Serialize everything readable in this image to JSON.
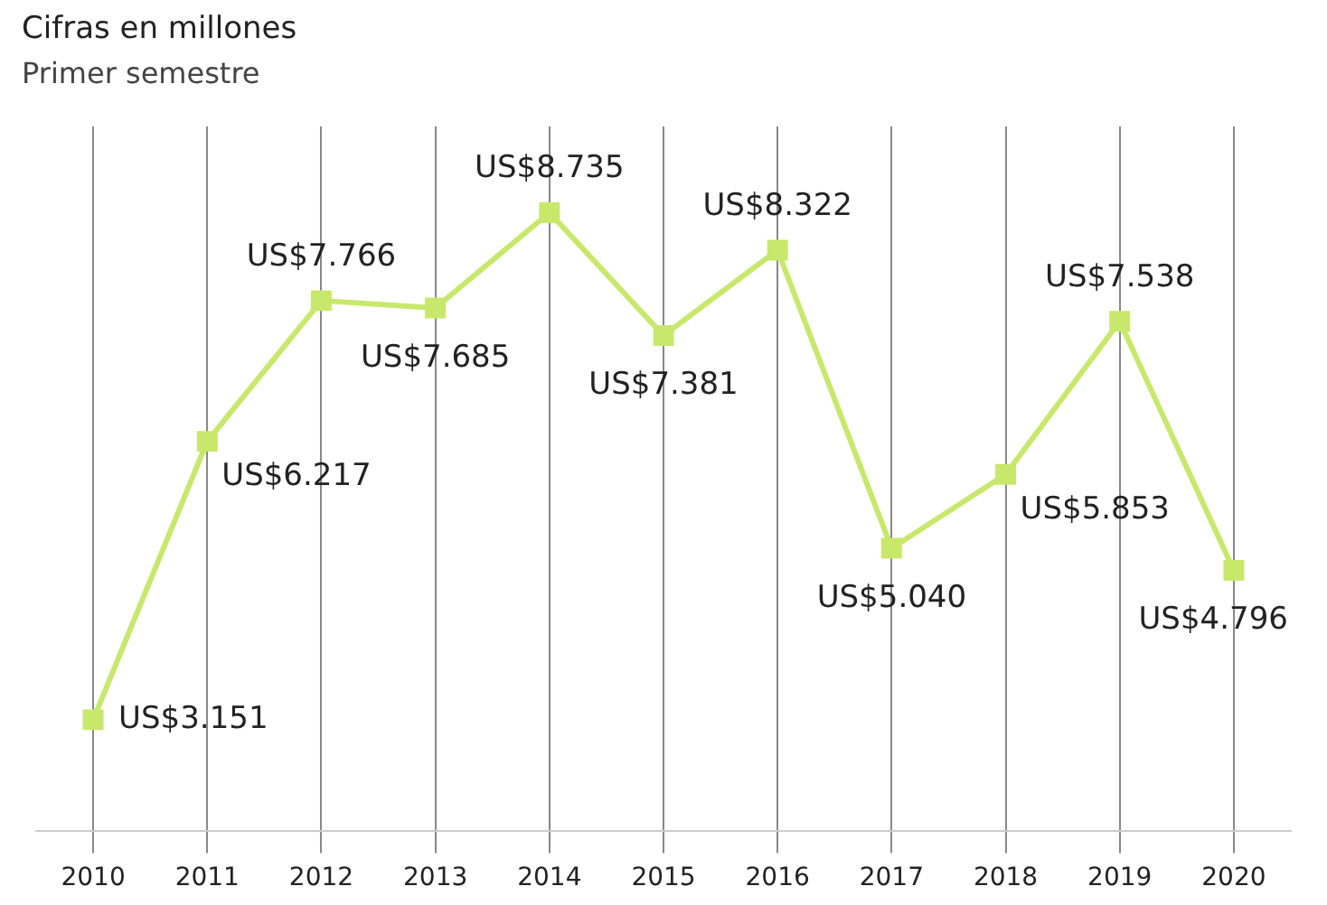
{
  "chart_data": {
    "type": "line",
    "title": "Cifras en millones",
    "subtitle": "Primer semestre",
    "categories": [
      "2010",
      "2011",
      "2012",
      "2013",
      "2014",
      "2015",
      "2016",
      "2017",
      "2018",
      "2019",
      "2020"
    ],
    "series": [
      {
        "color": "#c8e86c",
        "values": [
          3.151,
          6.217,
          7.766,
          7.685,
          8.735,
          7.381,
          8.322,
          5.04,
          5.853,
          7.538,
          4.796
        ],
        "value_labels": [
          "US$3.151",
          "US$6.217",
          "US$7.766",
          "US$7.685",
          "US$8.735",
          "US$7.381",
          "US$8.322",
          "US$5.040",
          "US$5.853",
          "US$7.538",
          "US$4.796"
        ]
      }
    ],
    "grid": "x",
    "marker": "square",
    "line_style": "solid",
    "legend": false,
    "tick_labels": "x"
  }
}
